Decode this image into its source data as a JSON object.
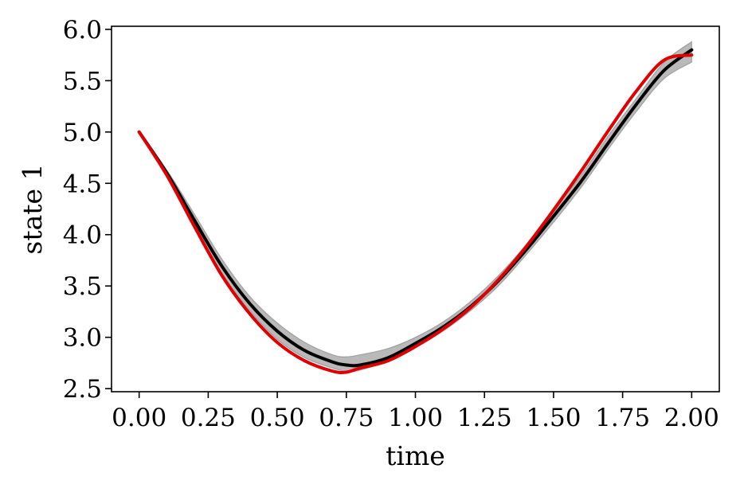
{
  "chart_data": {
    "type": "line",
    "xlabel": "time",
    "ylabel": "state 1",
    "xlim": [
      -0.1,
      2.1
    ],
    "ylim": [
      2.47,
      6.03
    ],
    "xticks": [
      0.0,
      0.25,
      0.5,
      0.75,
      1.0,
      1.25,
      1.5,
      1.75,
      2.0
    ],
    "xtick_labels": [
      "0.00",
      "0.25",
      "0.50",
      "0.75",
      "1.00",
      "1.25",
      "1.50",
      "1.75",
      "2.00"
    ],
    "yticks": [
      2.5,
      3.0,
      3.5,
      4.0,
      4.5,
      5.0,
      5.5,
      6.0
    ],
    "ytick_labels": [
      "2.5",
      "3.0",
      "3.5",
      "4.0",
      "4.5",
      "5.0",
      "5.5",
      "6.0"
    ],
    "grid": false,
    "x": [
      0.0,
      0.1,
      0.2,
      0.3,
      0.4,
      0.5,
      0.6,
      0.7,
      0.75,
      0.8,
      0.9,
      1.0,
      1.1,
      1.2,
      1.3,
      1.4,
      1.5,
      1.6,
      1.7,
      1.8,
      1.9,
      2.0
    ],
    "series": [
      {
        "role": "band",
        "color": "#7f7f7f",
        "lower": [
          5.0,
          4.56,
          4.08,
          3.62,
          3.26,
          2.98,
          2.8,
          2.7,
          2.67,
          2.68,
          2.77,
          2.9,
          3.06,
          3.26,
          3.5,
          3.8,
          4.12,
          4.46,
          4.84,
          5.2,
          5.52,
          5.68
        ],
        "upper": [
          5.0,
          4.63,
          4.2,
          3.76,
          3.4,
          3.14,
          2.95,
          2.83,
          2.81,
          2.83,
          2.89,
          3.0,
          3.15,
          3.35,
          3.6,
          3.9,
          4.24,
          4.58,
          4.97,
          5.33,
          5.68,
          5.88
        ]
      },
      {
        "role": "mean",
        "color": "#000000",
        "values": [
          5.0,
          4.6,
          4.14,
          3.69,
          3.33,
          3.06,
          2.87,
          2.76,
          2.73,
          2.73,
          2.8,
          2.94,
          3.1,
          3.3,
          3.55,
          3.85,
          4.18,
          4.52,
          4.9,
          5.27,
          5.6,
          5.8
        ]
      },
      {
        "role": "reference",
        "color": "#e00000",
        "values": [
          5.0,
          4.58,
          4.08,
          3.6,
          3.23,
          2.95,
          2.77,
          2.67,
          2.66,
          2.7,
          2.77,
          2.91,
          3.08,
          3.29,
          3.56,
          3.88,
          4.24,
          4.62,
          5.02,
          5.4,
          5.7,
          5.75
        ]
      }
    ]
  }
}
